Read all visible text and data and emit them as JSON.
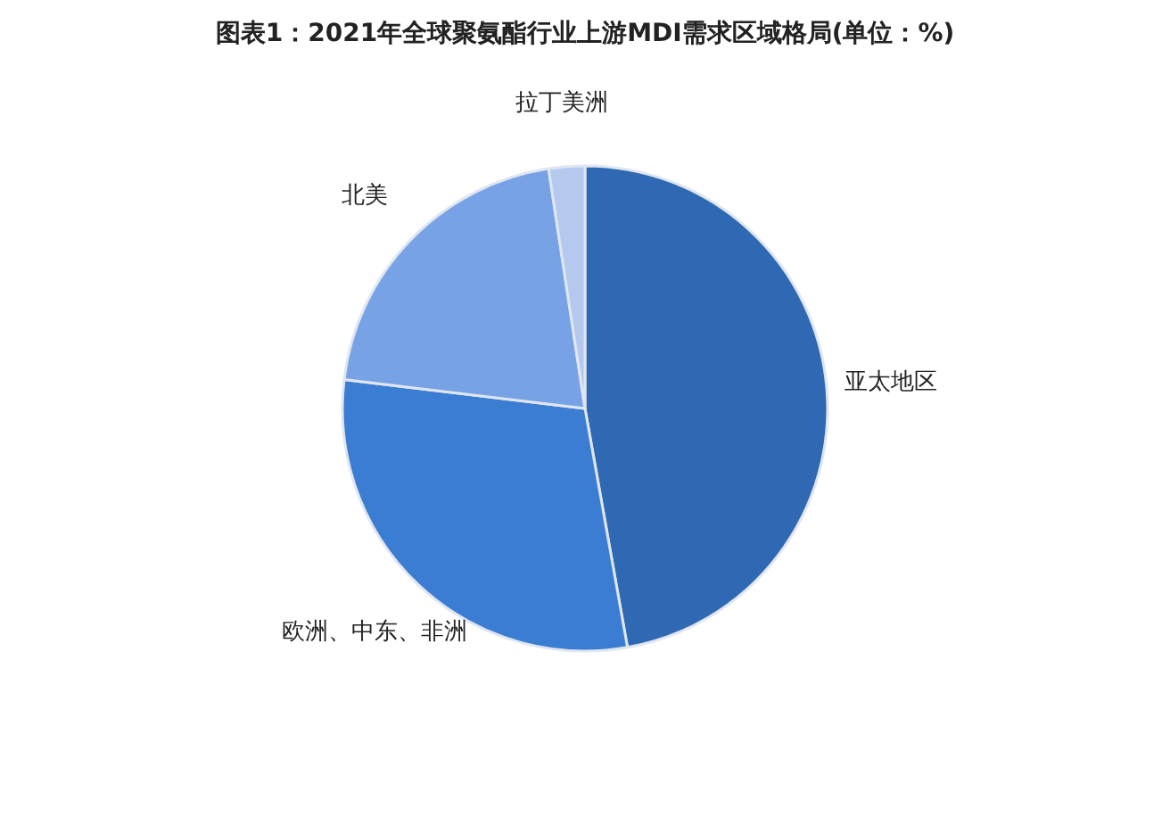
{
  "chart_data": {
    "type": "pie",
    "title": "图表1：2021年全球聚氨酯行业上游MDI需求区域格局(单位：%)",
    "categories": [
      "亚太地区",
      "欧洲、中东、非洲",
      "北美",
      "拉丁美洲"
    ],
    "values": [
      47.2,
      29.7,
      20.7,
      2.4
    ],
    "colors": [
      "#2f68b3",
      "#3b7dd3",
      "#77a3e6",
      "#b5c9ee"
    ],
    "legend": false
  }
}
